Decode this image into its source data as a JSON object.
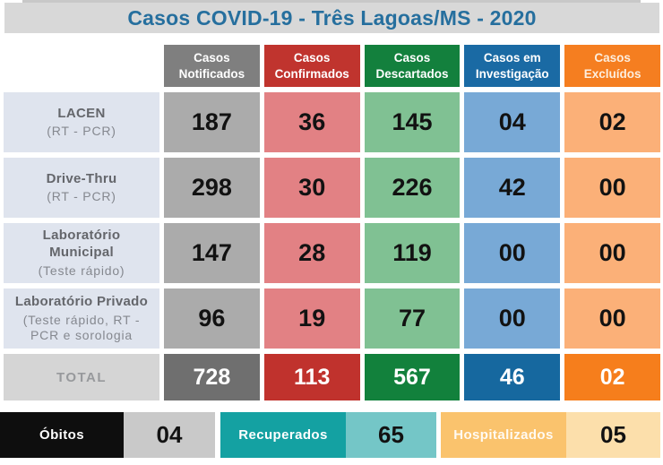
{
  "title": {
    "text": "Casos COVID-19 - Três Lagoas/MS - 2020",
    "color": "#266f9e",
    "bg": "#d8d8d8"
  },
  "table": {
    "columns": [
      {
        "label": "Casos Notificados",
        "header_bg": "#7f7f7f",
        "cell_bg": "#ababab",
        "total_bg": "#6f6f6f"
      },
      {
        "label": "Casos Confirmados",
        "header_bg": "#c0342e",
        "cell_bg": "#e28184",
        "total_bg": "#c0322d"
      },
      {
        "label": "Casos Descartados",
        "header_bg": "#13803d",
        "cell_bg": "#80c193",
        "total_bg": "#12813c"
      },
      {
        "label": "Casos em Investigação",
        "header_bg": "#1a6aa4",
        "cell_bg": "#78a9d6",
        "total_bg": "#16689f"
      },
      {
        "label": "Casos Excluídos",
        "header_bg": "#f57e20",
        "cell_bg": "#fbb078",
        "total_bg": "#f67e1c"
      }
    ],
    "rows": [
      {
        "name": "LACEN",
        "sub": "(RT - PCR)",
        "values": [
          "187",
          "36",
          "145",
          "04",
          "02"
        ]
      },
      {
        "name": "Drive-Thru",
        "sub": "(RT - PCR)",
        "values": [
          "298",
          "30",
          "226",
          "42",
          "00"
        ]
      },
      {
        "name": "Laboratório Municipal",
        "sub": "(Teste rápido)",
        "values": [
          "147",
          "28",
          "119",
          "00",
          "00"
        ]
      },
      {
        "name": "Laboratório Privado",
        "sub": "(Teste rápido, RT - PCR e sorologia",
        "values": [
          "96",
          "19",
          "77",
          "00",
          "00"
        ]
      }
    ],
    "total": {
      "label": "TOTAL",
      "values": [
        "728",
        "113",
        "567",
        "46",
        "02"
      ]
    }
  },
  "footer": {
    "obitos": {
      "label": "Óbitos",
      "value": "04",
      "label_bg": "#0e0e0e",
      "value_bg": "#c9c9c9"
    },
    "recuperados": {
      "label": "Recuperados",
      "value": "65",
      "label_bg": "#14a1a2",
      "value_bg": "#74c6c7"
    },
    "hospitalizados": {
      "label": "Hospitalizados",
      "value": "05",
      "label_bg": "#fac36d",
      "value_bg": "#fcdfab"
    }
  }
}
